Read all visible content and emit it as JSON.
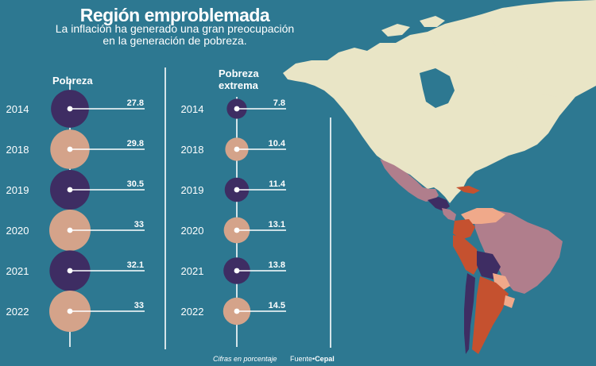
{
  "header": {
    "title": "Región emproblemada",
    "subtitle_line1": "La inflación ha generado una gran preocupación",
    "subtitle_line2": "en la generación de pobreza."
  },
  "colors": {
    "background": "#2d7891",
    "dark_circle": "#3e2d63",
    "light_circle": "#d4a38a",
    "line": "#ffffff",
    "map_north": "#e9e5c6",
    "map_central": "#b07e8c",
    "map_south_dark": "#3e2d63",
    "map_south_red": "#c5512f",
    "map_south_peach": "#f0a98a"
  },
  "chart_data": [
    {
      "type": "bubble",
      "title": "Pobreza",
      "unit": "porcentaje",
      "categories": [
        "2014",
        "2018",
        "2019",
        "2020",
        "2021",
        "2022"
      ],
      "values": [
        27.8,
        29.8,
        30.5,
        33,
        32.1,
        33
      ],
      "labels": [
        "27.8",
        "29.8",
        "30.5",
        "33",
        "32.1",
        "33"
      ],
      "fills": [
        "dark",
        "light",
        "dark",
        "light",
        "dark",
        "light"
      ]
    },
    {
      "type": "bubble",
      "title_line1": "Pobreza",
      "title_line2": "extrema",
      "unit": "porcentaje",
      "categories": [
        "2014",
        "2018",
        "2019",
        "2020",
        "2021",
        "2022"
      ],
      "values": [
        7.8,
        10.4,
        11.4,
        13.1,
        13.8,
        14.5
      ],
      "labels": [
        "7.8",
        "10.4",
        "11.4",
        "13.1",
        "13.8",
        "14.5"
      ],
      "fills": [
        "dark",
        "light",
        "dark",
        "light",
        "dark",
        "light"
      ]
    }
  ],
  "footer": {
    "note": "Cifras en porcentaje",
    "source_prefix": "Fuente",
    "source_name": "Cepal"
  }
}
